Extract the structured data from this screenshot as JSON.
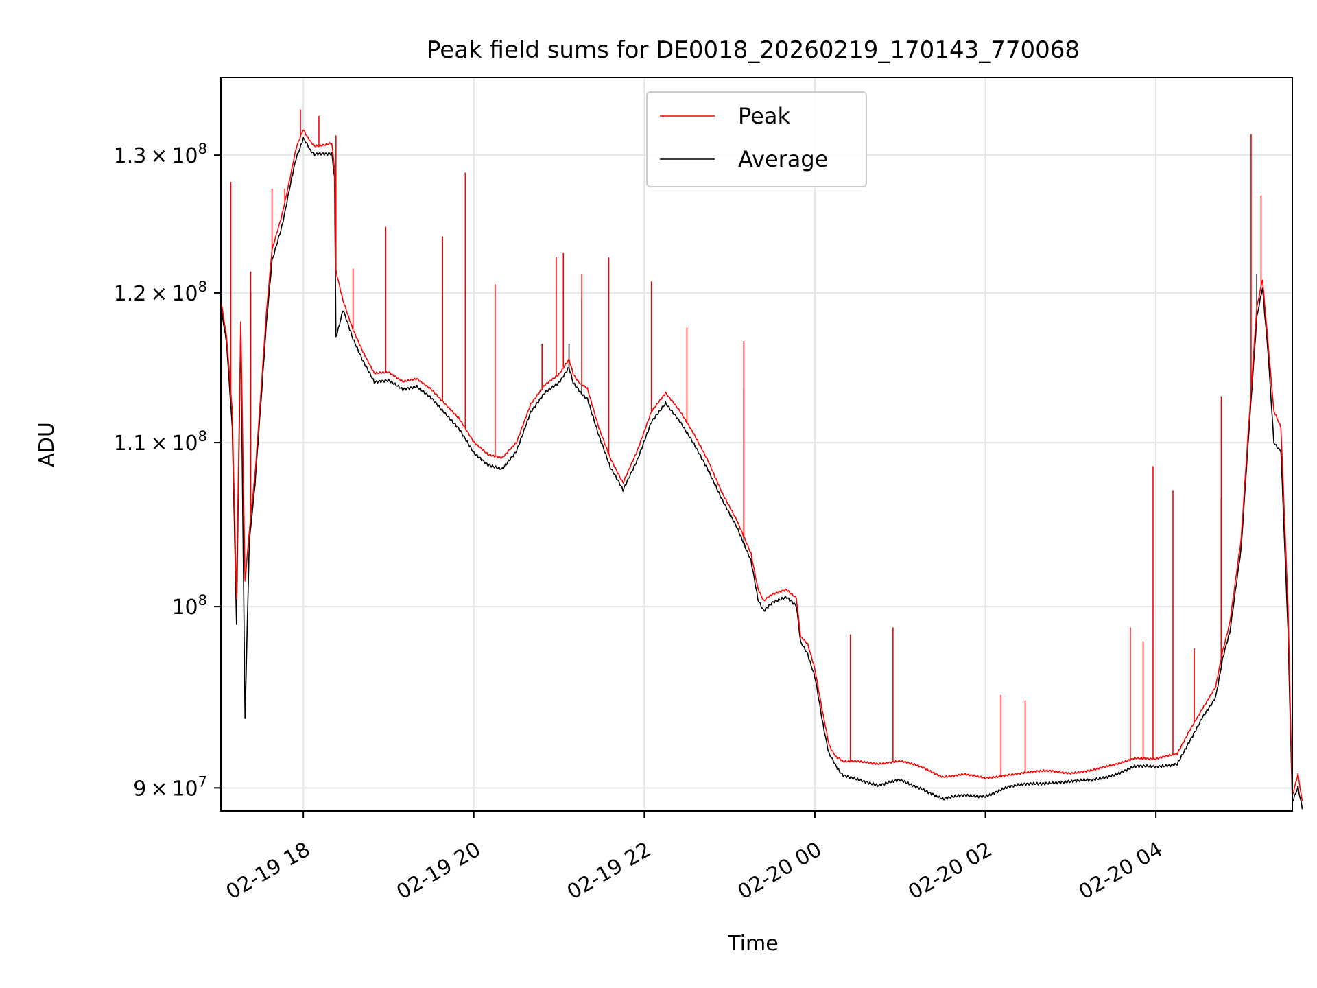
{
  "chart_data": {
    "type": "line",
    "title": "Peak field sums for DE0018_20260219_170143_770068",
    "xlabel": "Time",
    "ylabel": "ADU",
    "y_scale": "log",
    "ylim": [
      88800000,
      136000000
    ],
    "xlim": [
      "2026-02-19T17:02",
      "2026-02-20T05:36"
    ],
    "grid": true,
    "legend_position": "top-center",
    "x_ticks": [
      {
        "value": "2026-02-19T18:00",
        "label": "02-19 18"
      },
      {
        "value": "2026-02-19T20:00",
        "label": "02-19 20"
      },
      {
        "value": "2026-02-19T22:00",
        "label": "02-19 22"
      },
      {
        "value": "2026-02-20T00:00",
        "label": "02-20 00"
      },
      {
        "value": "2026-02-20T02:00",
        "label": "02-20 02"
      },
      {
        "value": "2026-02-20T04:00",
        "label": "02-20 04"
      }
    ],
    "y_ticks": [
      {
        "value": 90000000,
        "mantissa": "9",
        "exponent": "7"
      },
      {
        "value": 100000000,
        "mantissa": "",
        "exponent": "8"
      },
      {
        "value": 110000000,
        "mantissa": "1.1",
        "exponent": "8"
      },
      {
        "value": 120000000,
        "mantissa": "1.2",
        "exponent": "8"
      },
      {
        "value": 130000000,
        "mantissa": "1.3",
        "exponent": "8"
      }
    ],
    "series": [
      {
        "name": "Peak",
        "color": "#ff0000",
        "points": [
          [
            "2026-02-19T17:02",
            119500000
          ],
          [
            "2026-02-19T17:06",
            117000000
          ],
          [
            "2026-02-19T17:10",
            112000000
          ],
          [
            "2026-02-19T17:13",
            100500000
          ],
          [
            "2026-02-19T17:16",
            118000000
          ],
          [
            "2026-02-19T17:19",
            101500000
          ],
          [
            "2026-02-19T17:22",
            104500000
          ],
          [
            "2026-02-19T17:26",
            108000000
          ],
          [
            "2026-02-19T17:30",
            113000000
          ],
          [
            "2026-02-19T17:34",
            118500000
          ],
          [
            "2026-02-19T17:38",
            123000000
          ],
          [
            "2026-02-19T17:45",
            125500000
          ],
          [
            "2026-02-19T17:50",
            128000000
          ],
          [
            "2026-02-19T17:55",
            130500000
          ],
          [
            "2026-02-19T18:00",
            132000000
          ],
          [
            "2026-02-19T18:05",
            131000000
          ],
          [
            "2026-02-19T18:08",
            130700000
          ],
          [
            "2026-02-19T18:20",
            130900000
          ],
          [
            "2026-02-19T18:22",
            129000000
          ],
          [
            "2026-02-19T18:23",
            121500000
          ],
          [
            "2026-02-19T18:28",
            119500000
          ],
          [
            "2026-02-19T18:35",
            117500000
          ],
          [
            "2026-02-19T18:42",
            116000000
          ],
          [
            "2026-02-19T18:50",
            114500000
          ],
          [
            "2026-02-19T19:00",
            114600000
          ],
          [
            "2026-02-19T19:10",
            114000000
          ],
          [
            "2026-02-19T19:20",
            114200000
          ],
          [
            "2026-02-19T19:30",
            113500000
          ],
          [
            "2026-02-19T19:40",
            112500000
          ],
          [
            "2026-02-19T19:50",
            111500000
          ],
          [
            "2026-02-19T20:00",
            110000000
          ],
          [
            "2026-02-19T20:10",
            109200000
          ],
          [
            "2026-02-19T20:20",
            109000000
          ],
          [
            "2026-02-19T20:30",
            110000000
          ],
          [
            "2026-02-19T20:40",
            112500000
          ],
          [
            "2026-02-19T20:50",
            113800000
          ],
          [
            "2026-02-19T21:00",
            114500000
          ],
          [
            "2026-02-19T21:07",
            115500000
          ],
          [
            "2026-02-19T21:10",
            114500000
          ],
          [
            "2026-02-19T21:15",
            113800000
          ],
          [
            "2026-02-19T21:20",
            113500000
          ],
          [
            "2026-02-19T21:28",
            111000000
          ],
          [
            "2026-02-19T21:36",
            109000000
          ],
          [
            "2026-02-19T21:45",
            107500000
          ],
          [
            "2026-02-19T21:55",
            109500000
          ],
          [
            "2026-02-19T22:05",
            112000000
          ],
          [
            "2026-02-19T22:15",
            113200000
          ],
          [
            "2026-02-19T22:25",
            112000000
          ],
          [
            "2026-02-19T22:35",
            110500000
          ],
          [
            "2026-02-19T22:45",
            108800000
          ],
          [
            "2026-02-19T22:55",
            106800000
          ],
          [
            "2026-02-19T23:05",
            105200000
          ],
          [
            "2026-02-19T23:15",
            103200000
          ],
          [
            "2026-02-19T23:20",
            101000000
          ],
          [
            "2026-02-19T23:24",
            100300000
          ],
          [
            "2026-02-19T23:30",
            100700000
          ],
          [
            "2026-02-19T23:40",
            101000000
          ],
          [
            "2026-02-19T23:47",
            100500000
          ],
          [
            "2026-02-19T23:50",
            98300000
          ],
          [
            "2026-02-19T23:55",
            97800000
          ],
          [
            "2026-02-20T00:00",
            96500000
          ],
          [
            "2026-02-20T00:05",
            94200000
          ],
          [
            "2026-02-20T00:10",
            92300000
          ],
          [
            "2026-02-20T00:15",
            91600000
          ],
          [
            "2026-02-20T00:20",
            91400000
          ],
          [
            "2026-02-20T00:30",
            91400000
          ],
          [
            "2026-02-20T00:45",
            91300000
          ],
          [
            "2026-02-20T01:00",
            91400000
          ],
          [
            "2026-02-20T01:15",
            91100000
          ],
          [
            "2026-02-20T01:30",
            90600000
          ],
          [
            "2026-02-20T01:45",
            90700000
          ],
          [
            "2026-02-20T02:00",
            90500000
          ],
          [
            "2026-02-20T02:15",
            90700000
          ],
          [
            "2026-02-20T02:30",
            90800000
          ],
          [
            "2026-02-20T02:45",
            90900000
          ],
          [
            "2026-02-20T03:00",
            90800000
          ],
          [
            "2026-02-20T03:15",
            90900000
          ],
          [
            "2026-02-20T03:30",
            91200000
          ],
          [
            "2026-02-20T03:45",
            91600000
          ],
          [
            "2026-02-20T04:00",
            91500000
          ],
          [
            "2026-02-20T04:15",
            91800000
          ],
          [
            "2026-02-20T04:25",
            93200000
          ],
          [
            "2026-02-20T04:33",
            94300000
          ],
          [
            "2026-02-20T04:42",
            95400000
          ],
          [
            "2026-02-20T04:47",
            97500000
          ],
          [
            "2026-02-20T04:52",
            99000000
          ],
          [
            "2026-02-20T05:00",
            104000000
          ],
          [
            "2026-02-20T05:06",
            112000000
          ],
          [
            "2026-02-20T05:11",
            119000000
          ],
          [
            "2026-02-20T05:15",
            121000000
          ],
          [
            "2026-02-20T05:19",
            116500000
          ],
          [
            "2026-02-20T05:23",
            112000000
          ],
          [
            "2026-02-20T05:28",
            111000000
          ],
          [
            "2026-02-20T05:33",
            100000000
          ],
          [
            "2026-02-20T05:36",
            89600000
          ],
          [
            "2026-02-20T05:40",
            90700000
          ],
          [
            "2026-02-20T05:43",
            89300000
          ]
        ],
        "spikes": [
          [
            "2026-02-19T17:09",
            128000000
          ],
          [
            "2026-02-19T17:23",
            121500000
          ],
          [
            "2026-02-19T17:38",
            127500000
          ],
          [
            "2026-02-19T17:47",
            127500000
          ],
          [
            "2026-02-19T17:58",
            133500000
          ],
          [
            "2026-02-19T18:11",
            133000000
          ],
          [
            "2026-02-19T18:23",
            131500000
          ],
          [
            "2026-02-19T18:35",
            121700000
          ],
          [
            "2026-02-19T18:58",
            124700000
          ],
          [
            "2026-02-19T19:38",
            124000000
          ],
          [
            "2026-02-19T19:54",
            128700000
          ],
          [
            "2026-02-19T20:15",
            120600000
          ],
          [
            "2026-02-19T20:48",
            116500000
          ],
          [
            "2026-02-19T20:58",
            122500000
          ],
          [
            "2026-02-19T21:03",
            122800000
          ],
          [
            "2026-02-19T21:16",
            121300000
          ],
          [
            "2026-02-19T21:35",
            122500000
          ],
          [
            "2026-02-19T22:05",
            120800000
          ],
          [
            "2026-02-19T22:30",
            117600000
          ],
          [
            "2026-02-19T23:10",
            116700000
          ],
          [
            "2026-02-20T00:25",
            98400000
          ],
          [
            "2026-02-20T00:55",
            98800000
          ],
          [
            "2026-02-20T02:11",
            95000000
          ],
          [
            "2026-02-20T02:28",
            94700000
          ],
          [
            "2026-02-20T03:42",
            98800000
          ],
          [
            "2026-02-20T03:51",
            98000000
          ],
          [
            "2026-02-20T03:58",
            108500000
          ],
          [
            "2026-02-20T04:12",
            107000000
          ],
          [
            "2026-02-20T04:27",
            97600000
          ],
          [
            "2026-02-20T04:46",
            113000000
          ],
          [
            "2026-02-20T05:07",
            131600000
          ],
          [
            "2026-02-20T05:14",
            127000000
          ]
        ]
      },
      {
        "name": "Average",
        "color": "#000000",
        "points": [
          [
            "2026-02-19T17:02",
            119000000
          ],
          [
            "2026-02-19T17:06",
            116500000
          ],
          [
            "2026-02-19T17:10",
            111000000
          ],
          [
            "2026-02-19T17:13",
            99000000
          ],
          [
            "2026-02-19T17:16",
            117500000
          ],
          [
            "2026-02-19T17:19",
            93700000
          ],
          [
            "2026-02-19T17:22",
            103800000
          ],
          [
            "2026-02-19T17:26",
            107300000
          ],
          [
            "2026-02-19T17:30",
            112300000
          ],
          [
            "2026-02-19T17:34",
            117800000
          ],
          [
            "2026-02-19T17:38",
            122300000
          ],
          [
            "2026-02-19T17:45",
            124800000
          ],
          [
            "2026-02-19T17:50",
            127300000
          ],
          [
            "2026-02-19T17:55",
            129800000
          ],
          [
            "2026-02-19T18:00",
            131300000
          ],
          [
            "2026-02-19T18:05",
            130300000
          ],
          [
            "2026-02-19T18:08",
            130000000
          ],
          [
            "2026-02-19T18:20",
            130200000
          ],
          [
            "2026-02-19T18:22",
            128300000
          ],
          [
            "2026-02-19T18:23",
            117000000
          ],
          [
            "2026-02-19T18:28",
            118800000
          ],
          [
            "2026-02-19T18:35",
            116800000
          ],
          [
            "2026-02-19T18:42",
            115300000
          ],
          [
            "2026-02-19T18:50",
            113900000
          ],
          [
            "2026-02-19T19:00",
            114000000
          ],
          [
            "2026-02-19T19:10",
            113400000
          ],
          [
            "2026-02-19T19:20",
            113600000
          ],
          [
            "2026-02-19T19:30",
            112900000
          ],
          [
            "2026-02-19T19:40",
            111900000
          ],
          [
            "2026-02-19T19:50",
            110900000
          ],
          [
            "2026-02-19T20:00",
            109400000
          ],
          [
            "2026-02-19T20:10",
            108600000
          ],
          [
            "2026-02-19T20:20",
            108300000
          ],
          [
            "2026-02-19T20:30",
            109400000
          ],
          [
            "2026-02-19T20:40",
            111900000
          ],
          [
            "2026-02-19T20:50",
            113200000
          ],
          [
            "2026-02-19T21:00",
            113900000
          ],
          [
            "2026-02-19T21:07",
            114900000
          ],
          [
            "2026-02-19T21:10",
            113900000
          ],
          [
            "2026-02-19T21:15",
            113200000
          ],
          [
            "2026-02-19T21:20",
            112900000
          ],
          [
            "2026-02-19T21:28",
            110400000
          ],
          [
            "2026-02-19T21:36",
            108400000
          ],
          [
            "2026-02-19T21:45",
            107000000
          ],
          [
            "2026-02-19T21:55",
            108900000
          ],
          [
            "2026-02-19T22:05",
            111400000
          ],
          [
            "2026-02-19T22:15",
            112600000
          ],
          [
            "2026-02-19T22:25",
            111400000
          ],
          [
            "2026-02-19T22:35",
            109900000
          ],
          [
            "2026-02-19T22:45",
            108200000
          ],
          [
            "2026-02-19T22:55",
            106300000
          ],
          [
            "2026-02-19T23:05",
            104700000
          ],
          [
            "2026-02-19T23:15",
            102700000
          ],
          [
            "2026-02-19T23:20",
            100400000
          ],
          [
            "2026-02-19T23:24",
            99800000
          ],
          [
            "2026-02-19T23:30",
            100200000
          ],
          [
            "2026-02-19T23:40",
            100500000
          ],
          [
            "2026-02-19T23:47",
            100000000
          ],
          [
            "2026-02-19T23:50",
            97900000
          ],
          [
            "2026-02-19T23:55",
            97300000
          ],
          [
            "2026-02-20T00:00",
            96000000
          ],
          [
            "2026-02-20T00:05",
            93700000
          ],
          [
            "2026-02-20T00:10",
            91800000
          ],
          [
            "2026-02-20T00:15",
            91100000
          ],
          [
            "2026-02-20T00:20",
            90700000
          ],
          [
            "2026-02-20T00:30",
            90500000
          ],
          [
            "2026-02-20T00:45",
            90100000
          ],
          [
            "2026-02-20T01:00",
            90400000
          ],
          [
            "2026-02-20T01:15",
            90000000
          ],
          [
            "2026-02-20T01:30",
            89400000
          ],
          [
            "2026-02-20T01:45",
            89600000
          ],
          [
            "2026-02-20T02:00",
            89600000
          ],
          [
            "2026-02-20T02:15",
            90000000
          ],
          [
            "2026-02-20T02:30",
            90200000
          ],
          [
            "2026-02-20T02:45",
            90300000
          ],
          [
            "2026-02-20T03:00",
            90300000
          ],
          [
            "2026-02-20T03:15",
            90400000
          ],
          [
            "2026-02-20T03:30",
            90700000
          ],
          [
            "2026-02-20T03:45",
            91100000
          ],
          [
            "2026-02-20T04:00",
            91100000
          ],
          [
            "2026-02-20T04:15",
            91300000
          ],
          [
            "2026-02-20T04:25",
            92700000
          ],
          [
            "2026-02-20T04:33",
            93800000
          ],
          [
            "2026-02-20T04:42",
            94900000
          ],
          [
            "2026-02-20T04:47",
            97000000
          ],
          [
            "2026-02-20T04:52",
            98500000
          ],
          [
            "2026-02-20T05:00",
            103500000
          ],
          [
            "2026-02-20T05:06",
            111500000
          ],
          [
            "2026-02-20T05:11",
            118300000
          ],
          [
            "2026-02-20T05:15",
            120300000
          ],
          [
            "2026-02-20T05:19",
            115800000
          ],
          [
            "2026-02-20T05:23",
            110000000
          ],
          [
            "2026-02-20T05:28",
            109500000
          ],
          [
            "2026-02-20T05:33",
            98500000
          ],
          [
            "2026-02-20T05:36",
            89200000
          ],
          [
            "2026-02-20T05:40",
            90000000
          ],
          [
            "2026-02-20T05:43",
            88900000
          ]
        ],
        "spikes": [
          [
            "2026-02-19T17:23",
            120000000
          ],
          [
            "2026-02-19T21:07",
            116500000
          ],
          [
            "2026-02-19T21:16",
            119600000
          ],
          [
            "2026-02-19T23:10",
            113500000
          ],
          [
            "2026-02-20T04:46",
            106500000
          ],
          [
            "2026-02-20T05:11",
            121300000
          ]
        ]
      }
    ]
  }
}
